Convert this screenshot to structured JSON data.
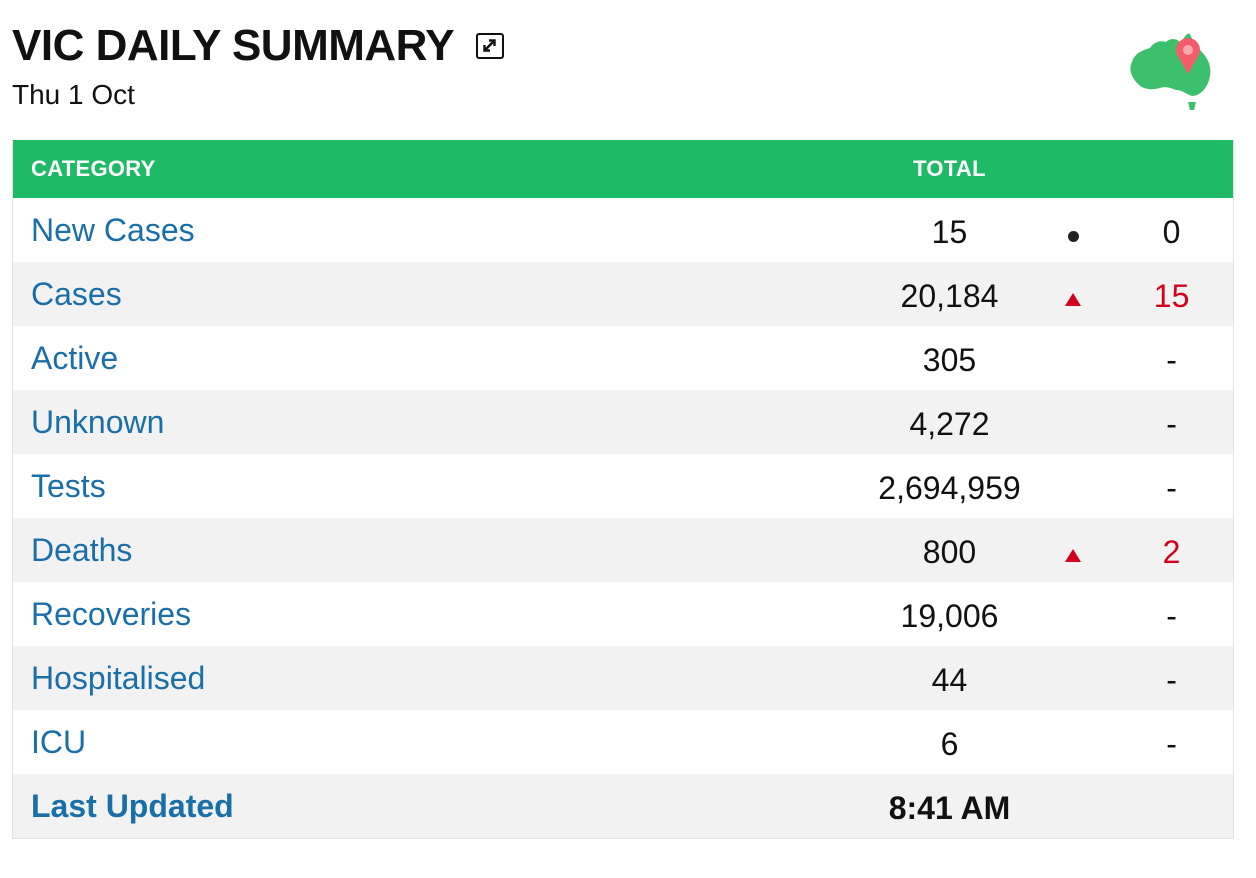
{
  "header": {
    "title": "VIC DAILY SUMMARY",
    "date": "Thu 1 Oct",
    "expand_icon": "expand-icon",
    "logo_icon": "australia-map-pin-logo"
  },
  "colors": {
    "header_bg": "#1fba66",
    "link": "#1a6fa8",
    "increase": "#d0021b",
    "row_alt": "#f2f2f2"
  },
  "table": {
    "columns": {
      "category": "CATEGORY",
      "total": "TOTAL"
    },
    "rows": [
      {
        "category": "New Cases",
        "total": "15",
        "indicator": "dot",
        "change": "0",
        "change_type": "neutral"
      },
      {
        "category": "Cases",
        "total": "20,184",
        "indicator": "up",
        "change": "15",
        "change_type": "up"
      },
      {
        "category": "Active",
        "total": "305",
        "indicator": "",
        "change": "-",
        "change_type": "neutral"
      },
      {
        "category": "Unknown",
        "total": "4,272",
        "indicator": "",
        "change": "-",
        "change_type": "neutral"
      },
      {
        "category": "Tests",
        "total": "2,694,959",
        "indicator": "",
        "change": "-",
        "change_type": "neutral"
      },
      {
        "category": "Deaths",
        "total": "800",
        "indicator": "up",
        "change": "2",
        "change_type": "up"
      },
      {
        "category": "Recoveries",
        "total": "19,006",
        "indicator": "",
        "change": "-",
        "change_type": "neutral"
      },
      {
        "category": "Hospitalised",
        "total": "44",
        "indicator": "",
        "change": "-",
        "change_type": "neutral"
      },
      {
        "category": "ICU",
        "total": "6",
        "indicator": "",
        "change": "-",
        "change_type": "neutral"
      }
    ],
    "last_updated": {
      "label": "Last Updated",
      "value": "8:41 AM"
    }
  }
}
